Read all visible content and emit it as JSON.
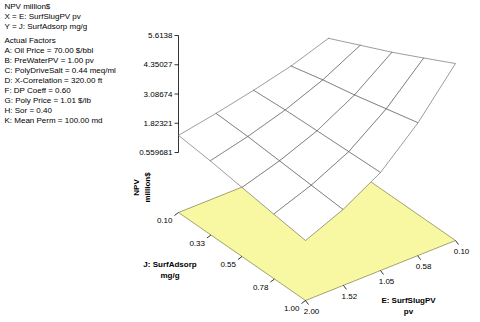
{
  "chart_data": {
    "type": "surface3d",
    "header": [
      "NPV million$",
      "X = E: SurfSlugPV pv",
      "Y = J: SurfAdsorp mg/g"
    ],
    "factors_title": "Actual Factors",
    "factors": [
      "A: Oil Price = 70.00 $/bbl",
      "B: PreWaterPV = 1.00 pv",
      "C: PolyDriveSalt = 0.44 meq/ml",
      "D: X-Correlation = 320.00 ft",
      "F: DP Coeff = 0.60",
      "G: Poly Price = 1.01 $/lb",
      "H: Sor = 0.40",
      "K: Mean Perm = 100.00 md"
    ],
    "xlabel": "E: SurfSlugPV",
    "xunit": "pv",
    "ylabel": "J: SurfAdsorp",
    "yunit": "mg/g",
    "zlabel": "NPV",
    "zunit": "million$",
    "x": [
      0.1,
      0.575,
      1.05,
      1.525,
      2.0
    ],
    "y": [
      0.1,
      0.325,
      0.55,
      0.775,
      1.0
    ],
    "z": [
      [
        2.9,
        2.35,
        1.95,
        1.6,
        1.3
      ],
      [
        3.55,
        2.7,
        2.05,
        1.55,
        1.15
      ],
      [
        4.2,
        3.0,
        2.1,
        1.45,
        0.95
      ],
      [
        4.9,
        3.35,
        2.15,
        1.35,
        0.75
      ],
      [
        5.6138,
        3.7,
        2.2,
        1.25,
        0.559681
      ]
    ],
    "xlim": [
      0.1,
      2.0
    ],
    "ylim": [
      0.1,
      1.0
    ],
    "zlim": [
      0.559681,
      5.6138
    ],
    "xticks": [
      {
        "value": 0.1,
        "label": "0.10"
      },
      0.58,
      1.05,
      1.52,
      {
        "value": 2,
        "label": "2.00"
      }
    ],
    "yticks": [
      {
        "value": 0.1,
        "label": "0.10"
      },
      0.33,
      0.55,
      0.78,
      {
        "value": 1,
        "label": "1.00"
      }
    ],
    "zticks": [
      0.559681,
      1.82321,
      3.08674,
      4.35027,
      5.6138
    ]
  }
}
